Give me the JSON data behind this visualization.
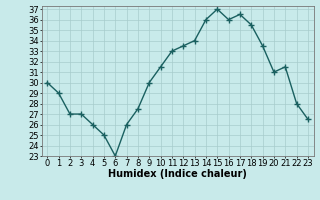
{
  "x": [
    0,
    1,
    2,
    3,
    4,
    5,
    6,
    7,
    8,
    9,
    10,
    11,
    12,
    13,
    14,
    15,
    16,
    17,
    18,
    19,
    20,
    21,
    22,
    23
  ],
  "y": [
    30,
    29,
    27,
    27,
    26,
    25,
    23,
    26,
    27.5,
    30,
    31.5,
    33,
    33.5,
    34,
    36,
    37,
    36,
    36.5,
    35.5,
    33.5,
    31,
    31.5,
    28,
    26.5
  ],
  "line_color": "#1a6060",
  "marker": "+",
  "marker_color": "#1a6060",
  "bg_color": "#c8eaea",
  "grid_color": "#a8cccc",
  "xlabel": "Humidex (Indice chaleur)",
  "ylim": [
    23,
    37
  ],
  "xlim": [
    -0.5,
    23.5
  ],
  "yticks": [
    23,
    24,
    25,
    26,
    27,
    28,
    29,
    30,
    31,
    32,
    33,
    34,
    35,
    36,
    37
  ],
  "xticks": [
    0,
    1,
    2,
    3,
    4,
    5,
    6,
    7,
    8,
    9,
    10,
    11,
    12,
    13,
    14,
    15,
    16,
    17,
    18,
    19,
    20,
    21,
    22,
    23
  ],
  "xlabel_fontsize": 7,
  "tick_fontsize": 6,
  "linewidth": 1.0,
  "markersize": 4
}
